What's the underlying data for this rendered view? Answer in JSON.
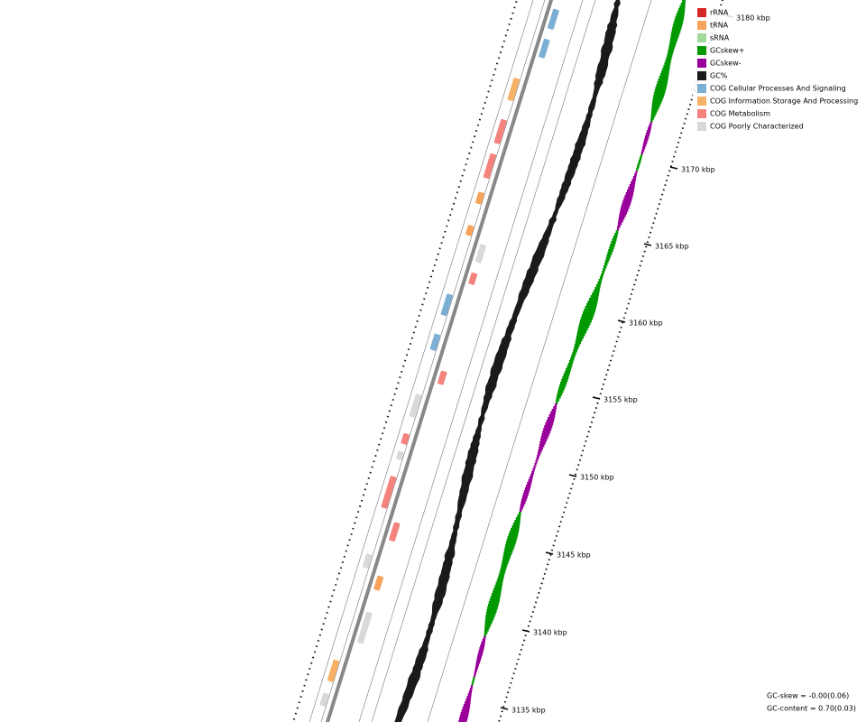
{
  "legend": [
    {
      "label": "rRNA",
      "color": "#d62728"
    },
    {
      "label": "tRNA",
      "color": "#f7a35c"
    },
    {
      "label": "sRNA",
      "color": "#a1d99b"
    },
    {
      "label": "GCskew+",
      "color": "#009900"
    },
    {
      "label": "GCskew-",
      "color": "#990099"
    },
    {
      "label": "GC%",
      "color": "#1a1a1a"
    },
    {
      "label": "COG Cellular Processes And Signaling",
      "color": "#7bafd4"
    },
    {
      "label": "COG Information Storage And Processing",
      "color": "#f7b267"
    },
    {
      "label": "COG Metabolism",
      "color": "#f4837d"
    },
    {
      "label": "COG Poorly Characterized",
      "color": "#d9d9d9"
    }
  ],
  "scale_labels": [
    "3135 kbp",
    "3140 kbp",
    "3145 kbp",
    "3150 kbp",
    "3155 kbp",
    "3160 kbp",
    "3165 kbp",
    "3170 kbp",
    "3180 kbp"
  ],
  "stats": [
    "GC-skew = -0.00(0.06)",
    "GC-content = 0.70(0.03)"
  ]
}
